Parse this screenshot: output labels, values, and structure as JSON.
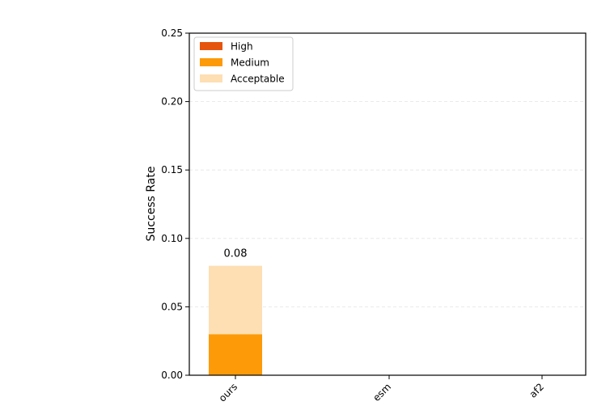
{
  "chart_data": {
    "type": "bar",
    "stacked": true,
    "categories": [
      "ours",
      "esm",
      "af2"
    ],
    "series": [
      {
        "name": "High",
        "values": [
          0.0,
          0.0,
          0.0
        ],
        "color": "#e6550d"
      },
      {
        "name": "Medium",
        "values": [
          0.03,
          0.0,
          0.0
        ],
        "color": "#fd9a08"
      },
      {
        "name": "Acceptable",
        "values": [
          0.05,
          0.0,
          0.0
        ],
        "color": "#fddfb3"
      }
    ],
    "totals": [
      0.08,
      0.0,
      0.0
    ],
    "total_labels": [
      "0.08",
      "",
      ""
    ],
    "xlabel": "",
    "ylabel": "Success Rate",
    "ylim": [
      0,
      0.25
    ],
    "yticks": [
      "0.00",
      "0.05",
      "0.10",
      "0.15",
      "0.20",
      "0.25"
    ],
    "ytick_values": [
      0,
      0.05,
      0.1,
      0.15,
      0.2,
      0.25
    ],
    "grid": "horizontal dashed",
    "legend_position": "top-left"
  }
}
